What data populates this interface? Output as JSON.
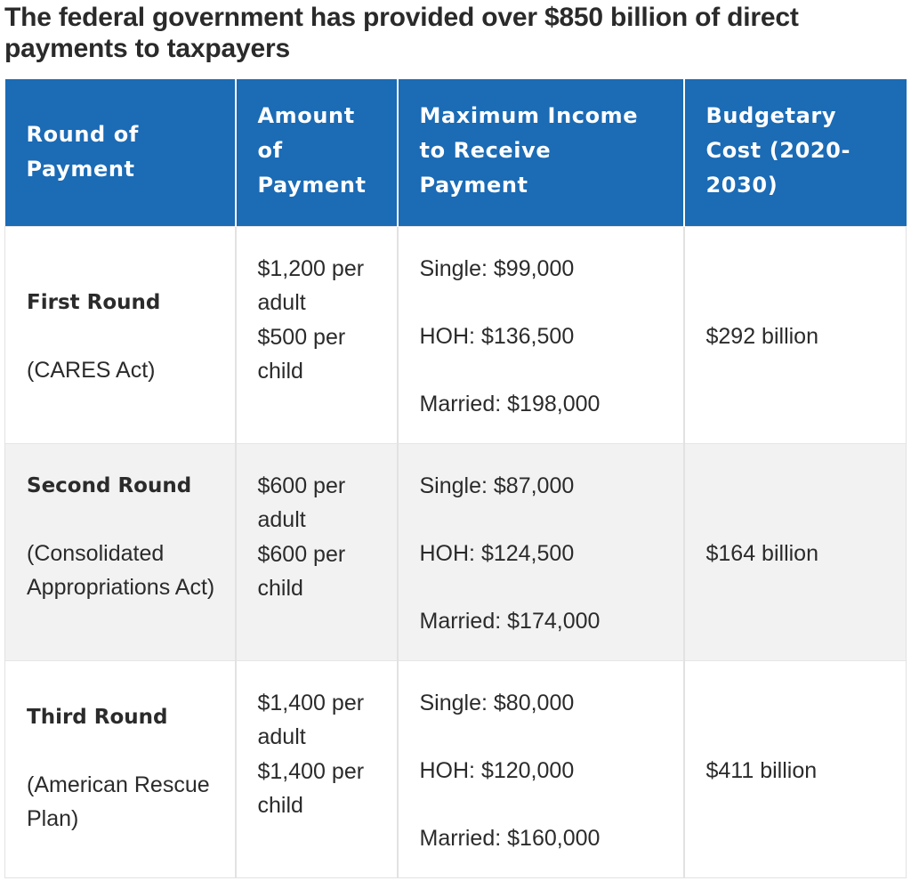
{
  "title": "The federal government has provided over $850 billion of direct payments to taxpayers",
  "table": {
    "headers": [
      "Round of Payment",
      "Amount of Payment",
      "Maximum Income to Receive Payment",
      "Budgetary Cost (2020-2030)"
    ],
    "rows": [
      {
        "round": "First Round",
        "act": "(CARES Act)",
        "adult": "$1,200 per adult",
        "child": "$500 per child",
        "single": "Single: $99,000",
        "hoh": "HOH: $136,500",
        "married": "Married: $198,000",
        "cost": "$292 billion"
      },
      {
        "round": "Second Round",
        "act": "(Consolidated Appropriations Act)",
        "adult": "$600 per adult",
        "child": "$600 per child",
        "single": "Single: $87,000",
        "hoh": "HOH: $124,500",
        "married": "Married: $174,000",
        "cost": "$164 billion"
      },
      {
        "round": "Third Round",
        "act": "(American Rescue Plan)",
        "adult": "$1,400 per adult",
        "child": "$1,400 per child",
        "single": "Single: $80,000",
        "hoh": "HOH: $120,000",
        "married": "Married: $160,000",
        "cost": "$411 billion"
      }
    ]
  },
  "colors": {
    "header_bg": "#1b6bb5",
    "header_text": "#ffffff",
    "shaded_row": "#f2f2f2",
    "body_text": "#2b2b2b"
  }
}
